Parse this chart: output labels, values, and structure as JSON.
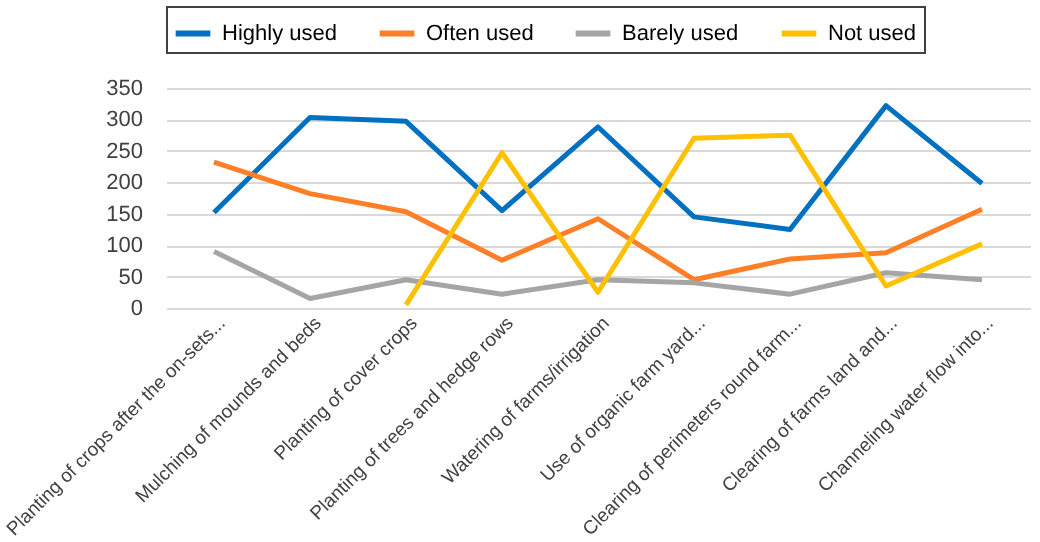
{
  "chart_data": {
    "type": "line",
    "categories": [
      "Planting of crops after the on-sets...",
      "Mulching of mounds and beds",
      "Planting of cover crops",
      "Planting of trees and hedge rows",
      "Watering of farms/irrigation",
      "Use of organic farm yard...",
      "Clearing of perimeters round farm...",
      "Clearing of farms land and...",
      "Channeling water flow into..."
    ],
    "series": [
      {
        "name": "Highly used",
        "color": "#0070c0",
        "values": [
          152,
          303,
          297,
          155,
          288,
          145,
          125,
          322,
          198
        ]
      },
      {
        "name": "Often used",
        "color": "#ff7f27",
        "values": [
          232,
          182,
          153,
          76,
          142,
          45,
          78,
          88,
          157
        ]
      },
      {
        "name": "Barely used",
        "color": "#a5a5a5",
        "values": [
          90,
          15,
          45,
          22,
          45,
          40,
          22,
          56,
          45
        ]
      },
      {
        "name": "Not used",
        "color": "#ffc000",
        "values": [
          null,
          null,
          5,
          247,
          25,
          270,
          275,
          35,
          102
        ]
      }
    ],
    "ylim": [
      0,
      350
    ],
    "yticks": [
      0,
      50,
      100,
      150,
      200,
      250,
      300,
      350
    ],
    "grid": "y",
    "legend": "top",
    "marker": "none",
    "line_style": "solid"
  }
}
